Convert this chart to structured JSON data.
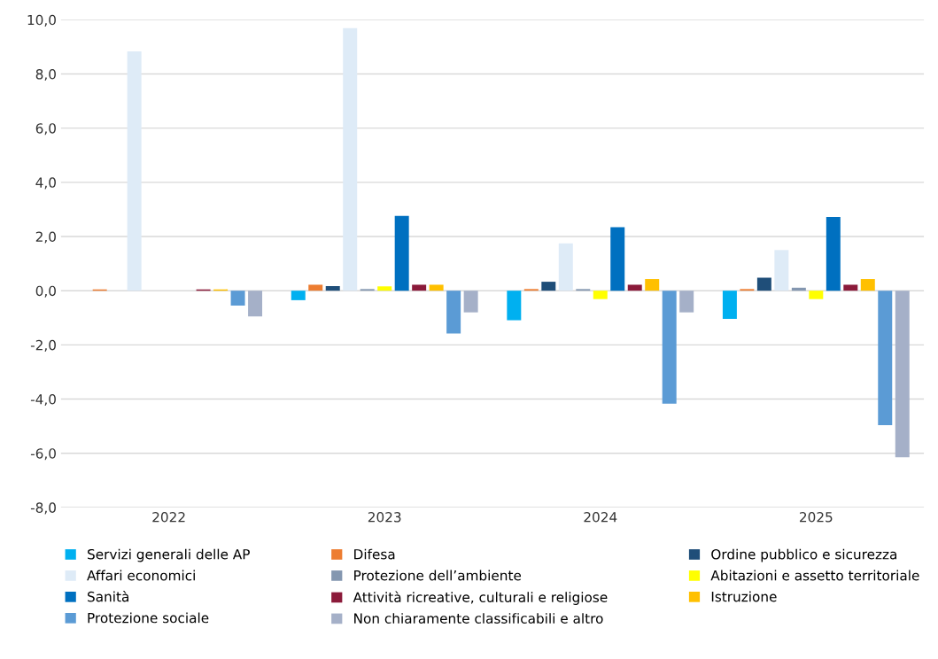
{
  "chart_data": {
    "type": "bar",
    "categories": [
      "2022",
      "2023",
      "2024",
      "2025"
    ],
    "series": [
      {
        "name": "Servizi generali delle AP",
        "color": "#00b0f0",
        "values": [
          0,
          -0.35,
          -1.09,
          -1.04
        ]
      },
      {
        "name": "Difesa",
        "color": "#ed7d31",
        "values": [
          0.05,
          0.22,
          0.06,
          0.06
        ]
      },
      {
        "name": "Ordine pubblico e sicurezza",
        "color": "#1f4e79",
        "values": [
          0,
          0.17,
          0.33,
          0.48
        ]
      },
      {
        "name": "Affari economici",
        "color": "#deebf7",
        "values": [
          8.83,
          9.69,
          1.75,
          1.5
        ]
      },
      {
        "name": "Protezione dell’ambiente",
        "color": "#8497b0",
        "values": [
          0,
          0.06,
          0.06,
          0.11
        ]
      },
      {
        "name": "Abitazioni e assetto territoriale",
        "color": "#ffff00",
        "values": [
          0,
          0.16,
          -0.31,
          -0.31
        ]
      },
      {
        "name": "Sanità",
        "color": "#0070c0",
        "values": [
          0,
          2.76,
          2.34,
          2.72
        ]
      },
      {
        "name": "Attività ricreative, culturali e religiose",
        "color": "#8b1a3a",
        "values": [
          0.05,
          0.22,
          0.22,
          0.22
        ]
      },
      {
        "name": "Istruzione",
        "color": "#ffc000",
        "values": [
          0.05,
          0.22,
          0.43,
          0.43
        ]
      },
      {
        "name": "Protezione sociale",
        "color": "#5b9bd5",
        "values": [
          -0.55,
          -1.58,
          -4.17,
          -4.96
        ]
      },
      {
        "name": "Non chiaramente classificabili e altro",
        "color": "#a5b0c8",
        "values": [
          -0.95,
          -0.8,
          -0.8,
          -6.15
        ]
      }
    ],
    "ylim": [
      -8,
      10
    ],
    "yticks": [
      {
        "value": -8,
        "label": "-8,0"
      },
      {
        "value": -6,
        "label": "-6,0"
      },
      {
        "value": -4,
        "label": "-4,0"
      },
      {
        "value": -2,
        "label": "-2,0"
      },
      {
        "value": 0,
        "label": "0,0"
      },
      {
        "value": 2,
        "label": "2,0"
      },
      {
        "value": 4,
        "label": "4,0"
      },
      {
        "value": 6,
        "label": "6,0"
      },
      {
        "value": 8,
        "label": "8,0"
      },
      {
        "value": 10,
        "label": "10,0"
      }
    ],
    "grid": "y",
    "legend": "bottom"
  }
}
